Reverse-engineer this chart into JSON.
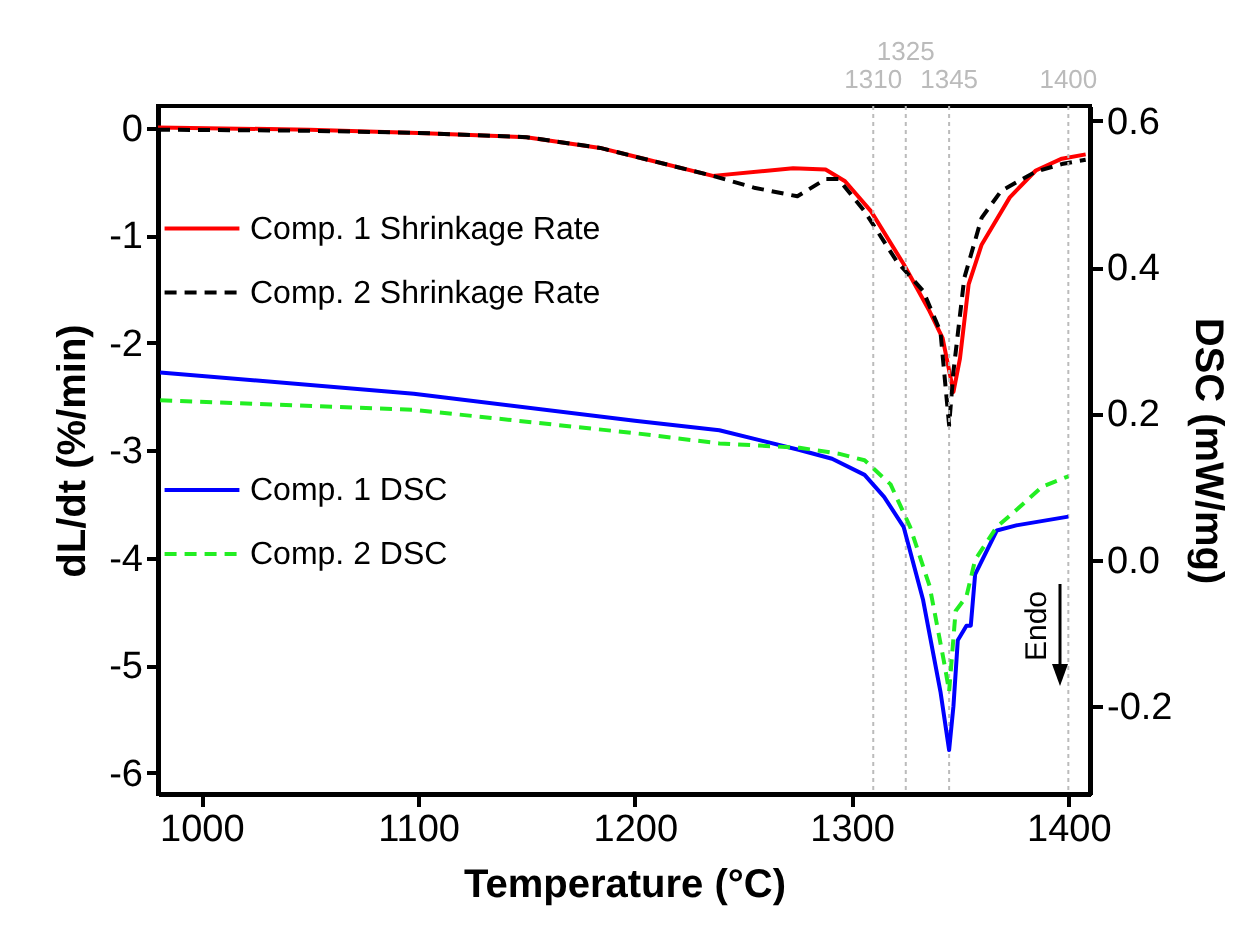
{
  "chart_data": {
    "type": "line",
    "xlabel": "Temperature (°C)",
    "ylabel": "dL/dt (%/min)",
    "y2label": "DSC (mW/mg)",
    "xlim": [
      980,
      1410
    ],
    "xticks": [
      1000,
      1100,
      1200,
      1300,
      1400
    ],
    "ylim": [
      -6.2,
      0.2
    ],
    "yticks": [
      -6,
      -5,
      -4,
      -3,
      -2,
      -1,
      0
    ],
    "y2lim": [
      -0.32,
      0.62
    ],
    "y2ticks": [
      -0.2,
      {
        "value": 0,
        "label": "0.0"
      },
      0.2,
      0.4,
      0.6
    ],
    "grid": false,
    "legend": "top left",
    "series": [
      {
        "name": "Comp. 1 Shrinkage Rate",
        "color": "#ff0000",
        "line_style": "solid",
        "x": [
          980,
          1050,
          1100,
          1150,
          1184,
          1200,
          1236,
          1273,
          1288,
          1297,
          1309,
          1324,
          1336,
          1342,
          1347,
          1350,
          1354,
          1360,
          1373,
          1385,
          1397,
          1408
        ],
        "values": [
          0,
          -0.02,
          -0.05,
          -0.09,
          -0.19,
          -0.27,
          -0.45,
          -0.38,
          -0.39,
          -0.5,
          -0.78,
          -1.27,
          -1.71,
          -1.96,
          -2.46,
          -2.15,
          -1.46,
          -1.09,
          -0.65,
          -0.4,
          -0.29,
          -0.25
        ]
      },
      {
        "name": "Comp. 2 Shrinkage Rate",
        "color": "#000000",
        "line_style": "dashed",
        "x": [
          980,
          1050,
          1100,
          1150,
          1184,
          1200,
          1236,
          1255,
          1275,
          1288,
          1294,
          1306,
          1321,
          1333,
          1341,
          1345,
          1347,
          1352,
          1360,
          1369,
          1385,
          1397,
          1408
        ],
        "values": [
          -0.02,
          -0.03,
          -0.05,
          -0.09,
          -0.19,
          -0.27,
          -0.45,
          -0.56,
          -0.64,
          -0.48,
          -0.48,
          -0.78,
          -1.25,
          -1.52,
          -1.9,
          -2.77,
          -2.27,
          -1.4,
          -0.84,
          -0.59,
          -0.41,
          -0.34,
          -0.3
        ]
      },
      {
        "name": "Comp. 1 DSC",
        "color": "#0000ff",
        "line_style": "solid",
        "axis": "y2",
        "x": [
          981,
          1098,
          1200,
          1239,
          1276,
          1291,
          1306,
          1315,
          1324,
          1333,
          1341,
          1345,
          1347,
          1349,
          1353,
          1355,
          1357,
          1367,
          1376,
          1400
        ],
        "values": [
          0.256,
          0.227,
          0.19,
          0.177,
          0.15,
          0.138,
          0.116,
          0.086,
          0.045,
          -0.055,
          -0.18,
          -0.26,
          -0.2,
          -0.11,
          -0.09,
          -0.09,
          -0.02,
          0.04,
          0.047,
          0.059
        ]
      },
      {
        "name": "Comp. 2 DSC",
        "color": "#22ee22",
        "line_style": "dashed",
        "axis": "y2",
        "x": [
          981,
          1098,
          1200,
          1239,
          1276,
          1294,
          1306,
          1318,
          1327,
          1336,
          1343,
          1345,
          1348,
          1353,
          1357,
          1367,
          1376,
          1388,
          1400
        ],
        "values": [
          0.218,
          0.205,
          0.173,
          0.159,
          0.153,
          0.145,
          0.136,
          0.103,
          0.045,
          -0.036,
          -0.145,
          -0.18,
          -0.07,
          -0.05,
          0,
          0.045,
          0.068,
          0.1,
          0.114
        ]
      }
    ],
    "ref_lines": [
      {
        "axis": "x",
        "value": 1310,
        "label": "1310",
        "color": "#bbbbbb",
        "line_style": "dotted"
      },
      {
        "axis": "x",
        "value": 1325,
        "label": "1325",
        "color": "#bbbbbb",
        "line_style": "dotted"
      },
      {
        "axis": "x",
        "value": 1345,
        "label": "1345",
        "color": "#bbbbbb",
        "line_style": "dotted"
      },
      {
        "axis": "x",
        "value": 1400,
        "label": "1400",
        "color": "#bbbbbb",
        "line_style": "dotted"
      }
    ],
    "annotations": [
      "Endo"
    ]
  }
}
